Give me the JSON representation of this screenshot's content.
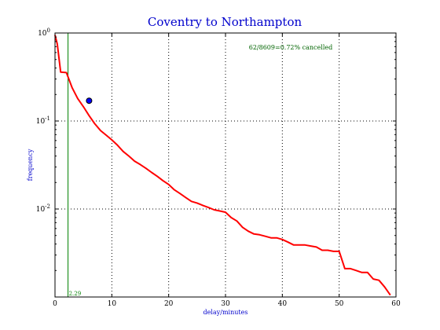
{
  "chart_data": {
    "type": "line",
    "title": "Coventry to Northampton",
    "xlabel": "delay/minutes",
    "ylabel": "frequency",
    "xlim": [
      0,
      60
    ],
    "ylim_log10": [
      -3,
      0
    ],
    "y_scale": "log",
    "grid": true,
    "x_ticks": [
      "0",
      "10",
      "20",
      "30",
      "40",
      "50",
      "60"
    ],
    "y_ticks": [
      {
        "base": "10",
        "exp": "0"
      },
      {
        "base": "10",
        "exp": "-1"
      },
      {
        "base": "10",
        "exp": "-2"
      }
    ],
    "annotation": "62/8609=0.72% cancelled",
    "vline": {
      "x": 2.29,
      "label": "2.29"
    },
    "marker": {
      "x": 6,
      "y": 0.17
    },
    "series": [
      {
        "color": "#ff0000",
        "points": [
          [
            0,
            0.95
          ],
          [
            0.4,
            0.75
          ],
          [
            1,
            0.36
          ],
          [
            2,
            0.355
          ],
          [
            3,
            0.24
          ],
          [
            4,
            0.18
          ],
          [
            5,
            0.145
          ],
          [
            6,
            0.115
          ],
          [
            7,
            0.093
          ],
          [
            8,
            0.078
          ],
          [
            9,
            0.069
          ],
          [
            10,
            0.061
          ],
          [
            11,
            0.053
          ],
          [
            12,
            0.045
          ],
          [
            13,
            0.04
          ],
          [
            14,
            0.035
          ],
          [
            15,
            0.032
          ],
          [
            16,
            0.029
          ],
          [
            17,
            0.026
          ],
          [
            18,
            0.0235
          ],
          [
            19,
            0.021
          ],
          [
            20,
            0.019
          ],
          [
            21,
            0.0165
          ],
          [
            22,
            0.015
          ],
          [
            23,
            0.0135
          ],
          [
            24,
            0.0122
          ],
          [
            25,
            0.0117
          ],
          [
            26,
            0.011
          ],
          [
            27,
            0.0104
          ],
          [
            28,
            0.0098
          ],
          [
            29,
            0.0095
          ],
          [
            30,
            0.0092
          ],
          [
            31,
            0.008
          ],
          [
            32,
            0.0073
          ],
          [
            33,
            0.0062
          ],
          [
            34,
            0.0056
          ],
          [
            35,
            0.0052
          ],
          [
            36,
            0.0051
          ],
          [
            37,
            0.0049
          ],
          [
            38,
            0.0047
          ],
          [
            39,
            0.0047
          ],
          [
            40,
            0.0045
          ],
          [
            41,
            0.0042
          ],
          [
            42,
            0.0039
          ],
          [
            43,
            0.0039
          ],
          [
            44,
            0.0039
          ],
          [
            45,
            0.0038
          ],
          [
            46,
            0.0037
          ],
          [
            47,
            0.0034
          ],
          [
            48,
            0.0034
          ],
          [
            49,
            0.0033
          ],
          [
            50,
            0.0033
          ],
          [
            51,
            0.0021
          ],
          [
            52,
            0.0021
          ],
          [
            53,
            0.002
          ],
          [
            54,
            0.0019
          ],
          [
            55,
            0.0019
          ],
          [
            56,
            0.0016
          ],
          [
            57,
            0.00155
          ],
          [
            58,
            0.0013
          ],
          [
            59,
            0.00105
          ]
        ]
      }
    ]
  },
  "colors": {
    "title": "#0000cc",
    "axis_label": "#0000cc",
    "series": "#ff0000",
    "vline": "#008000",
    "annotation": "#006400",
    "marker_fill": "#0000ff",
    "tick_text": "#000000",
    "frame": "#000000",
    "grid": "#000000"
  }
}
